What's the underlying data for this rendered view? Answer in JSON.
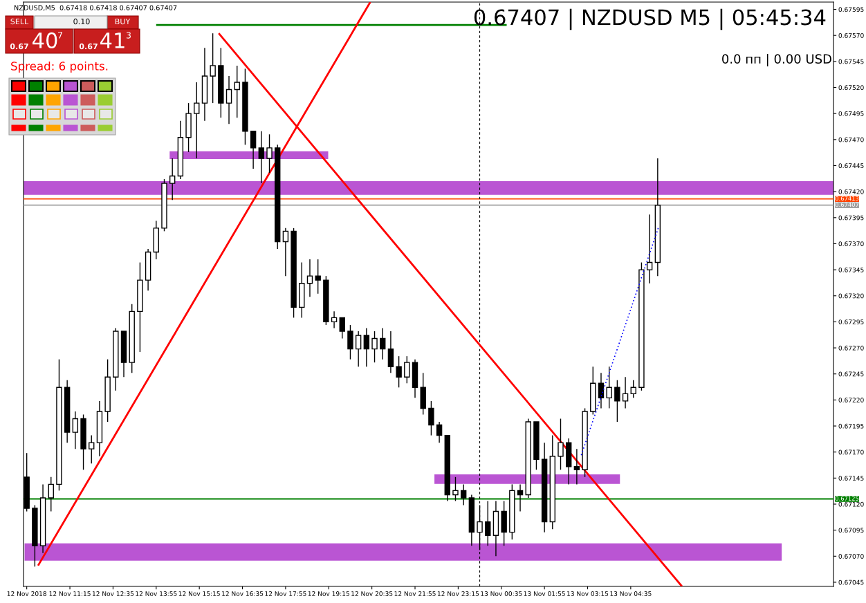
{
  "chart_data": {
    "type": "candlestick",
    "annotations": [
      "NZDUSD,M5  0.67418 0.67418 0.67407 0.67407",
      "0.67407 | NZDUSD M5 | 05:45:34",
      "0.0 пп | 0.00 USD",
      "Spread: 6 points.",
      "SELL",
      "0.10",
      "BUY",
      "0.67",
      "40",
      "7",
      "0.67",
      "41",
      "3"
    ],
    "x": [
      "2018-11-12T09:55",
      "2018-11-12T10:10",
      "2018-11-12T10:25",
      "2018-11-12T10:40",
      "2018-11-12T10:55",
      "2018-11-12T11:10",
      "2018-11-12T11:25",
      "2018-11-12T11:40",
      "2018-11-12T11:55",
      "2018-11-12T12:10",
      "2018-11-12T12:25",
      "2018-11-12T12:40",
      "2018-11-12T12:55",
      "2018-11-12T13:10",
      "2018-11-12T13:25",
      "2018-11-12T13:40",
      "2018-11-12T13:55",
      "2018-11-12T14:10",
      "2018-11-12T14:25",
      "2018-11-12T14:40",
      "2018-11-12T14:55",
      "2018-11-12T15:10",
      "2018-11-12T15:25",
      "2018-11-12T15:40",
      "2018-11-12T15:55",
      "2018-11-12T16:10",
      "2018-11-12T16:25",
      "2018-11-12T16:40",
      "2018-11-12T16:55",
      "2018-11-12T17:10",
      "2018-11-12T17:25",
      "2018-11-12T17:40",
      "2018-11-12T17:55",
      "2018-11-12T18:10",
      "2018-11-12T18:25",
      "2018-11-12T18:40",
      "2018-11-12T18:55",
      "2018-11-12T19:10",
      "2018-11-12T19:25",
      "2018-11-12T19:40",
      "2018-11-12T19:55",
      "2018-11-12T20:10",
      "2018-11-12T20:25",
      "2018-11-12T20:40",
      "2018-11-12T20:55",
      "2018-11-12T21:10",
      "2018-11-12T21:25",
      "2018-11-12T21:40",
      "2018-11-12T21:55",
      "2018-11-12T22:10",
      "2018-11-12T22:25",
      "2018-11-12T22:40",
      "2018-11-12T22:55",
      "2018-11-12T23:10",
      "2018-11-12T23:25",
      "2018-11-12T23:40",
      "2018-11-12T23:55",
      "2018-11-13T00:10",
      "2018-11-13T00:25",
      "2018-11-13T00:40",
      "2018-11-13T00:55",
      "2018-11-13T01:10",
      "2018-11-13T01:25",
      "2018-11-13T01:40",
      "2018-11-13T01:55",
      "2018-11-13T02:10",
      "2018-11-13T02:25",
      "2018-11-13T02:40",
      "2018-11-13T02:55",
      "2018-11-13T03:10",
      "2018-11-13T03:25",
      "2018-11-13T03:40",
      "2018-11-13T03:55",
      "2018-11-13T04:10",
      "2018-11-13T04:25",
      "2018-11-13T04:40",
      "2018-11-13T04:55",
      "2018-11-13T05:10",
      "2018-11-13T05:25"
    ],
    "ohlc": [
      [
        0.67146,
        0.67169,
        0.67113,
        0.67116
      ],
      [
        0.67116,
        0.67119,
        0.6706,
        0.6708
      ],
      [
        0.6708,
        0.67139,
        0.67073,
        0.67126
      ],
      [
        0.67126,
        0.67146,
        0.67113,
        0.67139
      ],
      [
        0.67139,
        0.67259,
        0.67133,
        0.67232
      ],
      [
        0.67232,
        0.67239,
        0.67179,
        0.67189
      ],
      [
        0.67189,
        0.67209,
        0.67173,
        0.67202
      ],
      [
        0.67202,
        0.67206,
        0.67153,
        0.67173
      ],
      [
        0.67173,
        0.67186,
        0.67159,
        0.67179
      ],
      [
        0.67179,
        0.67219,
        0.67166,
        0.67209
      ],
      [
        0.67209,
        0.67259,
        0.67199,
        0.67242
      ],
      [
        0.67242,
        0.67289,
        0.67229,
        0.67286
      ],
      [
        0.67286,
        0.67286,
        0.67242,
        0.67256
      ],
      [
        0.67256,
        0.67312,
        0.67246,
        0.67305
      ],
      [
        0.67305,
        0.67352,
        0.67266,
        0.67335
      ],
      [
        0.67335,
        0.67365,
        0.67325,
        0.67362
      ],
      [
        0.67362,
        0.67392,
        0.67355,
        0.67385
      ],
      [
        0.67385,
        0.67432,
        0.67382,
        0.67428
      ],
      [
        0.67428,
        0.67452,
        0.67412,
        0.67435
      ],
      [
        0.67435,
        0.67488,
        0.67432,
        0.67472
      ],
      [
        0.67472,
        0.67505,
        0.67458,
        0.67495
      ],
      [
        0.67495,
        0.67525,
        0.67452,
        0.67505
      ],
      [
        0.67505,
        0.67558,
        0.67488,
        0.67531
      ],
      [
        0.67531,
        0.67572,
        0.67505,
        0.67541
      ],
      [
        0.67541,
        0.67558,
        0.67491,
        0.67505
      ],
      [
        0.67505,
        0.67531,
        0.67485,
        0.67518
      ],
      [
        0.67518,
        0.67541,
        0.67491,
        0.67525
      ],
      [
        0.67525,
        0.67538,
        0.67465,
        0.67478
      ],
      [
        0.67478,
        0.67478,
        0.67442,
        0.67462
      ],
      [
        0.67462,
        0.67478,
        0.67428,
        0.67452
      ],
      [
        0.67452,
        0.67475,
        0.67438,
        0.67462
      ],
      [
        0.67462,
        0.67465,
        0.67365,
        0.67372
      ],
      [
        0.67372,
        0.67385,
        0.67339,
        0.67382
      ],
      [
        0.67382,
        0.67385,
        0.67299,
        0.67309
      ],
      [
        0.67309,
        0.67352,
        0.67299,
        0.67332
      ],
      [
        0.67332,
        0.67355,
        0.67319,
        0.67339
      ],
      [
        0.67339,
        0.67355,
        0.67322,
        0.67335
      ],
      [
        0.67335,
        0.67339,
        0.67292,
        0.67295
      ],
      [
        0.67295,
        0.67305,
        0.67289,
        0.67299
      ],
      [
        0.67299,
        0.67299,
        0.67279,
        0.67286
      ],
      [
        0.67286,
        0.67292,
        0.67259,
        0.67269
      ],
      [
        0.67269,
        0.67286,
        0.67252,
        0.67282
      ],
      [
        0.67282,
        0.67289,
        0.67252,
        0.67269
      ],
      [
        0.67269,
        0.67286,
        0.67256,
        0.67279
      ],
      [
        0.67279,
        0.67289,
        0.67259,
        0.67269
      ],
      [
        0.67269,
        0.67286,
        0.67246,
        0.67252
      ],
      [
        0.67252,
        0.67262,
        0.67232,
        0.67242
      ],
      [
        0.67242,
        0.67262,
        0.67236,
        0.67256
      ],
      [
        0.67256,
        0.67259,
        0.67222,
        0.67232
      ],
      [
        0.67232,
        0.67246,
        0.67206,
        0.67212
      ],
      [
        0.67212,
        0.67219,
        0.67186,
        0.67196
      ],
      [
        0.67196,
        0.67199,
        0.67179,
        0.67186
      ],
      [
        0.67186,
        0.67186,
        0.67123,
        0.67129
      ],
      [
        0.67129,
        0.67146,
        0.67123,
        0.67133
      ],
      [
        0.67133,
        0.67139,
        0.67119,
        0.67126
      ],
      [
        0.67126,
        0.67129,
        0.6708,
        0.67093
      ],
      [
        0.67093,
        0.67119,
        0.67076,
        0.67103
      ],
      [
        0.67103,
        0.67123,
        0.6708,
        0.6709
      ],
      [
        0.6709,
        0.67123,
        0.6707,
        0.67113
      ],
      [
        0.67113,
        0.67123,
        0.6708,
        0.67093
      ],
      [
        0.67093,
        0.67139,
        0.67086,
        0.67133
      ],
      [
        0.67133,
        0.67139,
        0.67113,
        0.67129
      ],
      [
        0.67129,
        0.67202,
        0.67126,
        0.67199
      ],
      [
        0.67199,
        0.67199,
        0.67153,
        0.67163
      ],
      [
        0.67163,
        0.67179,
        0.67093,
        0.67103
      ],
      [
        0.67103,
        0.67186,
        0.67096,
        0.67166
      ],
      [
        0.67166,
        0.67202,
        0.67153,
        0.67179
      ],
      [
        0.67179,
        0.67183,
        0.67139,
        0.67156
      ],
      [
        0.67156,
        0.67173,
        0.67139,
        0.67153
      ],
      [
        0.67153,
        0.67212,
        0.67146,
        0.67209
      ],
      [
        0.67209,
        0.67252,
        0.67206,
        0.67236
      ],
      [
        0.67236,
        0.67246,
        0.67212,
        0.67222
      ],
      [
        0.67222,
        0.67252,
        0.67212,
        0.67232
      ],
      [
        0.67232,
        0.67239,
        0.67199,
        0.67219
      ],
      [
        0.67219,
        0.67242,
        0.67212,
        0.67226
      ],
      [
        0.67226,
        0.67239,
        0.67222,
        0.67232
      ],
      [
        0.67232,
        0.67352,
        0.67229,
        0.67345
      ],
      [
        0.67345,
        0.67398,
        0.67332,
        0.67352
      ],
      [
        0.67352,
        0.67452,
        0.67339,
        0.67407
      ]
    ],
    "series": [
      {
        "type": "line",
        "color": "#ba55d3",
        "x": [
          "2018-11-12T14:20",
          "2018-11-12T19:14"
        ],
        "values": [
          0.67455,
          0.67455
        ]
      },
      {
        "type": "line",
        "color": "#ba55d3",
        "x": [
          "2018-11-12T22:31",
          "2018-11-13T04:15"
        ],
        "values": [
          0.67144,
          0.67144
        ]
      },
      {
        "type": "line",
        "color": "#ba55d3",
        "x": [
          "2018-11-12T09:51",
          "2018-11-13T09:15"
        ],
        "values": [
          0.67074,
          0.67074
        ]
      },
      {
        "type": "line",
        "color": "#008000",
        "x": [
          "2018-11-12T13:55",
          "2018-11-13T00:45"
        ],
        "values": [
          0.6758,
          0.6758
        ]
      },
      {
        "type": "line",
        "color": "#ff0000",
        "x": [
          "2018-11-12T10:16",
          "2018-11-12T20:32"
        ],
        "values": [
          0.67061,
          0.67602
        ]
      },
      {
        "type": "line",
        "color": "#ff0000",
        "x": [
          "2018-11-12T15:51",
          "2018-11-13T06:10"
        ],
        "values": [
          0.67572,
          0.67041
        ]
      },
      {
        "type": "line",
        "color": "#0000ff",
        "line_style": "dotted",
        "x": [
          "2018-11-13T03:02",
          "2018-11-13T05:26"
        ],
        "values": [
          0.67165,
          0.67385
        ]
      }
    ],
    "bands": [
      {
        "axis": "y",
        "from": 0.67417,
        "to": 0.6743,
        "color": "#ba55d3"
      }
    ],
    "ref_lines": [
      {
        "axis": "y",
        "value": 0.67125,
        "label": "0.67125",
        "color": "#008000"
      },
      {
        "axis": "y",
        "value": 0.67413,
        "label": "0.67413",
        "color": "#ff4500"
      },
      {
        "axis": "y",
        "value": 0.67407,
        "label": "0.67407",
        "color": "#a0a0a0"
      },
      {
        "axis": "x",
        "value": "2018-11-12T23:55",
        "color": "#000000",
        "line_style": "dashed"
      }
    ],
    "xlim": [
      "2018-11-12T09:49",
      "2018-11-13T10:51"
    ],
    "xticks": [
      {
        "value": "2018-11-12T09:55",
        "label": "12 Nov 2018"
      },
      {
        "value": "2018-11-12T11:15",
        "label": "12 Nov 11:15"
      },
      {
        "value": "2018-11-12T12:35",
        "label": "12 Nov 12:35"
      },
      {
        "value": "2018-11-12T13:55",
        "label": "12 Nov 13:55"
      },
      {
        "value": "2018-11-12T15:15",
        "label": "12 Nov 15:15"
      },
      {
        "value": "2018-11-12T16:35",
        "label": "12 Nov 16:35"
      },
      {
        "value": "2018-11-12T17:55",
        "label": "12 Nov 17:55"
      },
      {
        "value": "2018-11-12T19:15",
        "label": "12 Nov 19:15"
      },
      {
        "value": "2018-11-12T20:35",
        "label": "12 Nov 20:35"
      },
      {
        "value": "2018-11-12T21:55",
        "label": "12 Nov 21:55"
      },
      {
        "value": "2018-11-12T23:15",
        "label": "12 Nov 23:15"
      },
      {
        "value": "2018-11-13T00:35",
        "label": "13 Nov 00:35"
      },
      {
        "value": "2018-11-13T01:55",
        "label": "13 Nov 01:55"
      },
      {
        "value": "2018-11-13T03:15",
        "label": "13 Nov 03:15"
      },
      {
        "value": "2018-11-13T04:35",
        "label": "13 Nov 04:35"
      }
    ],
    "ylim": [
      0.67041,
      0.67602
    ],
    "yticks": [
      0.67045,
      {
        "value": 0.6707,
        "label": "0.67070"
      },
      0.67095,
      {
        "value": 0.6712,
        "label": "0.67120"
      },
      0.67145,
      {
        "value": 0.6717,
        "label": "0.67170"
      },
      0.67195,
      {
        "value": 0.6722,
        "label": "0.67220"
      },
      0.67245,
      {
        "value": 0.6727,
        "label": "0.67270"
      },
      0.67295,
      {
        "value": 0.6732,
        "label": "0.67320"
      },
      0.67345,
      {
        "value": 0.6737,
        "label": "0.67370"
      },
      0.67395,
      {
        "value": 0.6742,
        "label": "0.67420"
      },
      0.67445,
      {
        "value": 0.6747,
        "label": "0.67470"
      },
      0.67495,
      {
        "value": 0.6752,
        "label": "0.67520"
      },
      0.67545,
      {
        "value": 0.6757,
        "label": "0.67570"
      },
      0.67595
    ]
  }
}
